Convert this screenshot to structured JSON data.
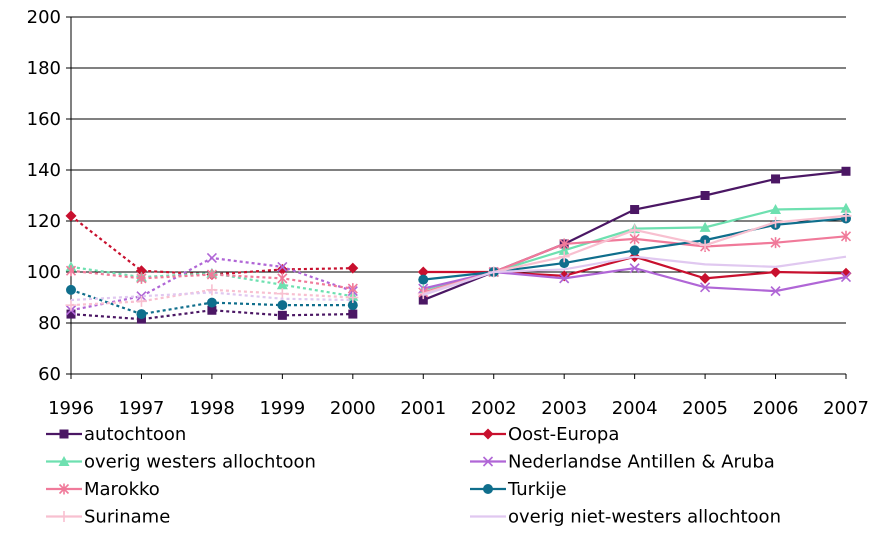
{
  "chart_data": {
    "type": "line",
    "title": "",
    "xlabel": "",
    "ylabel": "",
    "x": [
      "1996",
      "1997",
      "1998",
      "1999",
      "2000",
      "2001",
      "2002",
      "2003",
      "2004",
      "2005",
      "2006",
      "2007"
    ],
    "ylim": [
      60,
      200
    ],
    "yticks": [
      "60",
      "80",
      "100",
      "120",
      "140",
      "160",
      "180",
      "200"
    ],
    "grid": "horizontal",
    "legend": "bottom, two columns",
    "dashed_segment": [
      "1996",
      "2000"
    ],
    "solid_segment": [
      "2001",
      "2007"
    ],
    "series": [
      {
        "name": "autochtoon",
        "color": "#4b1764",
        "marker": "square",
        "values": [
          83.5,
          81.5,
          85,
          83,
          83.5,
          89,
          100,
          111,
          124.5,
          130,
          136.5,
          139.5
        ]
      },
      {
        "name": "Oost-Europa",
        "color": "#c8102e",
        "marker": "diamond",
        "values": [
          122,
          100.5,
          99,
          101,
          101.5,
          100,
          100,
          98.5,
          106,
          97.5,
          100,
          99.5
        ]
      },
      {
        "name": "overig westers allochtoon",
        "color": "#6ee0b0",
        "marker": "triangle",
        "values": [
          102,
          98,
          99.5,
          95,
          90.5,
          93,
          100,
          108.5,
          117,
          117.5,
          124.5,
          125
        ]
      },
      {
        "name": "Nederlandse Antillen & Aruba",
        "color": "#b066d6",
        "marker": "x",
        "values": [
          85,
          90.5,
          105.5,
          102,
          92.5,
          93.5,
          100,
          97.5,
          101.5,
          94,
          92.5,
          98
        ]
      },
      {
        "name": "Marokko",
        "color": "#f07a9a",
        "marker": "star",
        "values": [
          100.5,
          97.5,
          99,
          97.5,
          93.5,
          92,
          100,
          111,
          113,
          110,
          111.5,
          114
        ]
      },
      {
        "name": "Turkije",
        "color": "#0f6e8c",
        "marker": "circle",
        "values": [
          93,
          83.5,
          88,
          87,
          87,
          97,
          100,
          103.5,
          108.5,
          112.5,
          118.5,
          121
        ]
      },
      {
        "name": "Suriname",
        "color": "#f8c0d0",
        "marker": "plus",
        "values": [
          87,
          88.5,
          93,
          91.5,
          90,
          91.5,
          100,
          106,
          116.5,
          110.5,
          119.5,
          122
        ]
      },
      {
        "name": "overig niet-westers allochtoon",
        "color": "#e0c8f0",
        "marker": "none",
        "values": [
          89,
          90.5,
          92,
          89.5,
          89,
          91,
          100,
          101,
          106,
          103,
          102,
          106
        ]
      }
    ]
  }
}
